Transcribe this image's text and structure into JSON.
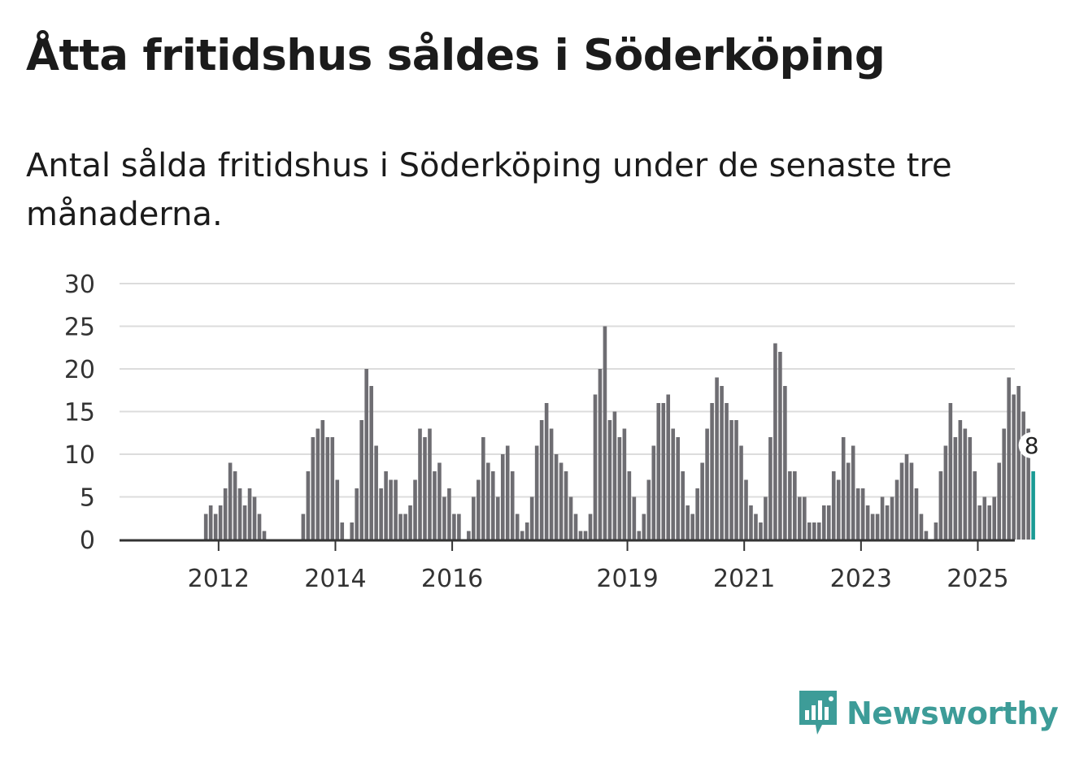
{
  "title": "Åtta fritidshus såldes i Söderköping",
  "subtitle": "Antal sålda fritidshus i Söderköping under de senaste tre månaderna.",
  "brand": {
    "name": "Newsworthy",
    "icon": "newsworthy-logo-icon",
    "color": "#3d9c98"
  },
  "chart_data": {
    "type": "bar",
    "ylim": [
      0,
      30
    ],
    "yticks": [
      0,
      5,
      10,
      15,
      20,
      25,
      30
    ],
    "xticks": [
      "2012",
      "2014",
      "2016",
      "2019",
      "2021",
      "2023",
      "2025"
    ],
    "grid": true,
    "bar_color": "#6e6d72",
    "highlight_color": "#1a9a94",
    "highlight_label": "8",
    "values": [
      0,
      0,
      0,
      0,
      0,
      0,
      0,
      0,
      0,
      3,
      4,
      3,
      4,
      6,
      9,
      8,
      6,
      4,
      6,
      5,
      3,
      1,
      0,
      0,
      0,
      0,
      0,
      0,
      0,
      3,
      8,
      12,
      13,
      14,
      12,
      12,
      7,
      2,
      0,
      2,
      6,
      14,
      20,
      18,
      11,
      6,
      8,
      7,
      7,
      3,
      3,
      4,
      7,
      13,
      12,
      13,
      8,
      9,
      5,
      6,
      3,
      3,
      0,
      1,
      5,
      7,
      12,
      9,
      8,
      5,
      10,
      11,
      8,
      3,
      1,
      2,
      5,
      11,
      14,
      16,
      13,
      10,
      9,
      8,
      5,
      3,
      1,
      1,
      3,
      17,
      20,
      25,
      14,
      15,
      12,
      13,
      8,
      5,
      1,
      3,
      7,
      11,
      16,
      16,
      17,
      13,
      12,
      8,
      4,
      3,
      6,
      9,
      13,
      16,
      19,
      18,
      16,
      14,
      14,
      11,
      7,
      4,
      3,
      2,
      5,
      12,
      23,
      22,
      18,
      8,
      8,
      5,
      5,
      2,
      2,
      2,
      4,
      4,
      8,
      7,
      12,
      9,
      11,
      6,
      6,
      4,
      3,
      3,
      5,
      4,
      5,
      7,
      9,
      10,
      9,
      6,
      3,
      1,
      0,
      2,
      8,
      11,
      16,
      12,
      14,
      13,
      12,
      8,
      4,
      5,
      4,
      5,
      9,
      13,
      19,
      17,
      18,
      15,
      13,
      8
    ]
  }
}
